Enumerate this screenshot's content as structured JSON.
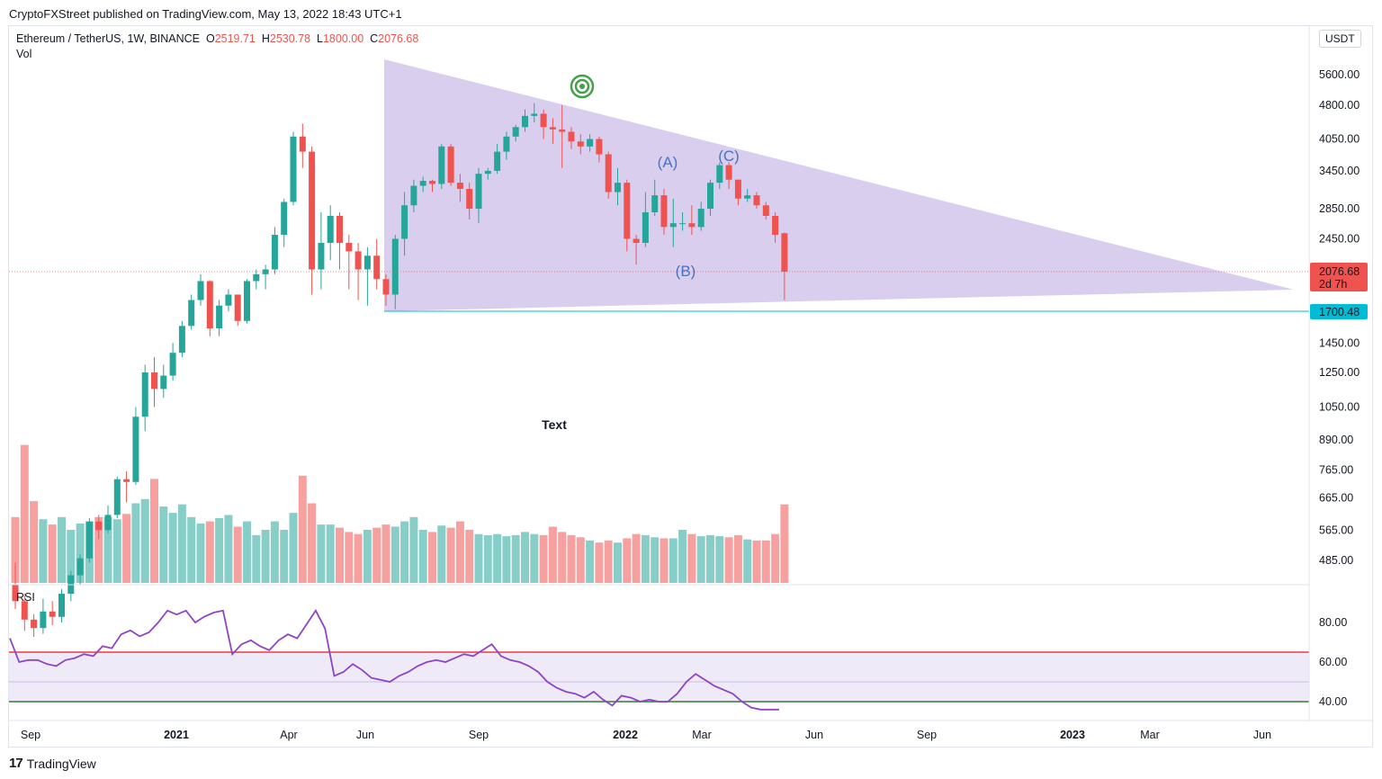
{
  "header": {
    "published": "CryptoFXStreet published on TradingView.com, May 13, 2022 18:43 UTC+1"
  },
  "legend": {
    "symbol": "Ethereum / TetherUS, 1W, BINANCE",
    "o_label": "O",
    "o_value": "2519.71",
    "h_label": "H",
    "h_value": "2530.78",
    "l_label": "L",
    "l_value": "1800.00",
    "c_label": "C",
    "c_value": "2076.68",
    "vol_label": "Vol",
    "rsi_label": "RSI"
  },
  "currency_button": "USDT",
  "footer": {
    "brand": "TradingView"
  },
  "colors": {
    "up": "#26a69a",
    "down": "#ef5350",
    "triangle": "#b39ddb",
    "rsi_line": "#8e44c4",
    "rsi_upper": "#f23645",
    "rsi_lower": "#2e7d32",
    "support": "#00bcd4"
  },
  "chart_data": [
    {
      "type": "candlestick",
      "title": "Ethereum / TetherUS, 1W, BINANCE",
      "scale": "log",
      "y_ticks": [
        "5600.00",
        "4800.00",
        "4050.00",
        "3450.00",
        "2850.00",
        "2450.00",
        "1450.00",
        "1250.00",
        "1050.00",
        "890.00",
        "765.00",
        "665.00",
        "565.00",
        "485.00"
      ],
      "x_ticks": [
        "Sep",
        "2021",
        "Apr",
        "Jun",
        "Sep",
        "2022",
        "Mar",
        "Jun",
        "Sep",
        "2023",
        "Mar",
        "Jun"
      ],
      "last_price_label": "2076.68",
      "countdown_label": "2d 7h",
      "support_label": "1700.48",
      "support_value": 1700.48,
      "annotations": [
        "(A)",
        "(B)",
        "(C)",
        "Text"
      ],
      "ohlc": [
        [
          430,
          480,
          380,
          395
        ],
        [
          395,
          410,
          340,
          360
        ],
        [
          360,
          370,
          330,
          345
        ],
        [
          345,
          400,
          335,
          375
        ],
        [
          375,
          395,
          350,
          365
        ],
        [
          365,
          420,
          355,
          410
        ],
        [
          410,
          460,
          395,
          450
        ],
        [
          450,
          500,
          430,
          490
        ],
        [
          490,
          600,
          480,
          590
        ],
        [
          590,
          610,
          540,
          565
        ],
        [
          565,
          640,
          555,
          610
        ],
        [
          610,
          740,
          600,
          730
        ],
        [
          730,
          760,
          650,
          720
        ],
        [
          720,
          1050,
          710,
          1000
        ],
        [
          1000,
          1300,
          930,
          1250
        ],
        [
          1250,
          1350,
          1050,
          1150
        ],
        [
          1150,
          1300,
          1100,
          1230
        ],
        [
          1230,
          1450,
          1200,
          1380
        ],
        [
          1380,
          1620,
          1350,
          1580
        ],
        [
          1580,
          1850,
          1550,
          1800
        ],
        [
          1800,
          2050,
          1750,
          1980
        ],
        [
          1980,
          1990,
          1500,
          1560
        ],
        [
          1560,
          1800,
          1500,
          1750
        ],
        [
          1750,
          1900,
          1700,
          1850
        ],
        [
          1850,
          1850,
          1580,
          1620
        ],
        [
          1620,
          2000,
          1600,
          1980
        ],
        [
          1980,
          2100,
          1900,
          2050
        ],
        [
          2050,
          2150,
          1900,
          2100
        ],
        [
          2100,
          2600,
          2050,
          2500
        ],
        [
          2500,
          3000,
          2350,
          2950
        ],
        [
          2950,
          4200,
          2900,
          4100
        ],
        [
          4100,
          4380,
          3500,
          3800
        ],
        [
          3800,
          3900,
          1850,
          2100
        ],
        [
          2100,
          2800,
          1900,
          2400
        ],
        [
          2400,
          2900,
          2200,
          2750
        ],
        [
          2750,
          2800,
          2100,
          2400
        ],
        [
          2400,
          2500,
          1900,
          2300
        ],
        [
          2300,
          2400,
          1800,
          2100
        ],
        [
          2100,
          2350,
          1750,
          2250
        ],
        [
          2250,
          2450,
          1900,
          2000
        ],
        [
          2000,
          2050,
          1750,
          1850
        ],
        [
          1850,
          2500,
          1720,
          2450
        ],
        [
          2450,
          3100,
          2250,
          2900
        ],
        [
          2900,
          3300,
          2800,
          3200
        ],
        [
          3200,
          3350,
          3100,
          3280
        ],
        [
          3280,
          3300,
          3100,
          3230
        ],
        [
          3230,
          3950,
          3150,
          3900
        ],
        [
          3900,
          3950,
          3200,
          3250
        ],
        [
          3250,
          3400,
          2950,
          3150
        ],
        [
          3150,
          3250,
          2700,
          2850
        ],
        [
          2850,
          3500,
          2650,
          3400
        ],
        [
          3400,
          3500,
          3300,
          3450
        ],
        [
          3450,
          3950,
          3400,
          3800
        ],
        [
          3800,
          4200,
          3650,
          4100
        ],
        [
          4100,
          4350,
          4000,
          4300
        ],
        [
          4300,
          4700,
          4200,
          4550
        ],
        [
          4550,
          4850,
          4400,
          4600
        ],
        [
          4600,
          4700,
          4050,
          4300
        ],
        [
          4300,
          4500,
          3950,
          4250
        ],
        [
          4250,
          4800,
          3500,
          4200
        ],
        [
          4200,
          4300,
          3850,
          4000
        ],
        [
          4000,
          4150,
          3750,
          3900
        ],
        [
          3900,
          4150,
          3800,
          4050
        ],
        [
          4050,
          4100,
          3600,
          3750
        ],
        [
          3750,
          3800,
          3000,
          3100
        ],
        [
          3100,
          3500,
          2900,
          3250
        ],
        [
          3250,
          3300,
          2300,
          2450
        ],
        [
          2450,
          2500,
          2150,
          2400
        ],
        [
          2400,
          3100,
          2350,
          2800
        ],
        [
          2800,
          3300,
          2750,
          3050
        ],
        [
          3050,
          3150,
          2500,
          2600
        ],
        [
          2600,
          3000,
          2350,
          2650
        ],
        [
          2650,
          2800,
          2550,
          2650
        ],
        [
          2650,
          2900,
          2500,
          2600
        ],
        [
          2600,
          2950,
          2550,
          2850
        ],
        [
          2850,
          3300,
          2750,
          3250
        ],
        [
          3250,
          3600,
          3150,
          3550
        ],
        [
          3550,
          3600,
          3150,
          3300
        ],
        [
          3300,
          3300,
          2900,
          3000
        ],
        [
          3000,
          3150,
          2950,
          3050
        ],
        [
          3050,
          3100,
          2850,
          2900
        ],
        [
          2900,
          2950,
          2700,
          2750
        ],
        [
          2750,
          2800,
          2400,
          2500
        ],
        [
          2519.71,
          2530.78,
          1800,
          2076.68
        ]
      ],
      "volume": [
        62,
        130,
        77,
        60,
        55,
        62,
        50,
        56,
        58,
        62,
        62,
        60,
        65,
        75,
        79,
        98,
        72,
        66,
        74,
        62,
        56,
        58,
        61,
        64,
        53,
        58,
        45,
        50,
        58,
        50,
        66,
        101,
        75,
        55,
        55,
        52,
        48,
        46,
        50,
        52,
        55,
        53,
        58,
        62,
        50,
        48,
        54,
        52,
        58,
        50,
        46,
        45,
        46,
        44,
        45,
        48,
        46,
        45,
        53,
        48,
        45,
        43,
        40,
        38,
        40,
        38,
        42,
        46,
        45,
        43,
        42,
        42,
        50,
        46,
        44,
        45,
        44,
        43,
        45,
        41,
        40,
        40,
        46,
        74
      ]
    },
    {
      "type": "line",
      "title": "RSI",
      "y_ticks": [
        "80.00",
        "60.00",
        "40.00"
      ],
      "ylim": [
        33,
        92
      ],
      "overbought": 65,
      "oversold": 40,
      "values": [
        72,
        60,
        61,
        61,
        59,
        58,
        61,
        62,
        64,
        63,
        68,
        67,
        74,
        76,
        73,
        75,
        80,
        86,
        84,
        86,
        80,
        83,
        85,
        86,
        64,
        69,
        71,
        68,
        66,
        71,
        74,
        72,
        79,
        86,
        77,
        53,
        55,
        59,
        56,
        52,
        51,
        50,
        53,
        55,
        58,
        60,
        61,
        60,
        62,
        64,
        63,
        66,
        69,
        63,
        61,
        60,
        58,
        55,
        50,
        47,
        45,
        44,
        42,
        45,
        41,
        38,
        43,
        42,
        40,
        41,
        40,
        40,
        44,
        50,
        54,
        51,
        48,
        46,
        44,
        40,
        37,
        36,
        36,
        36
      ]
    }
  ]
}
